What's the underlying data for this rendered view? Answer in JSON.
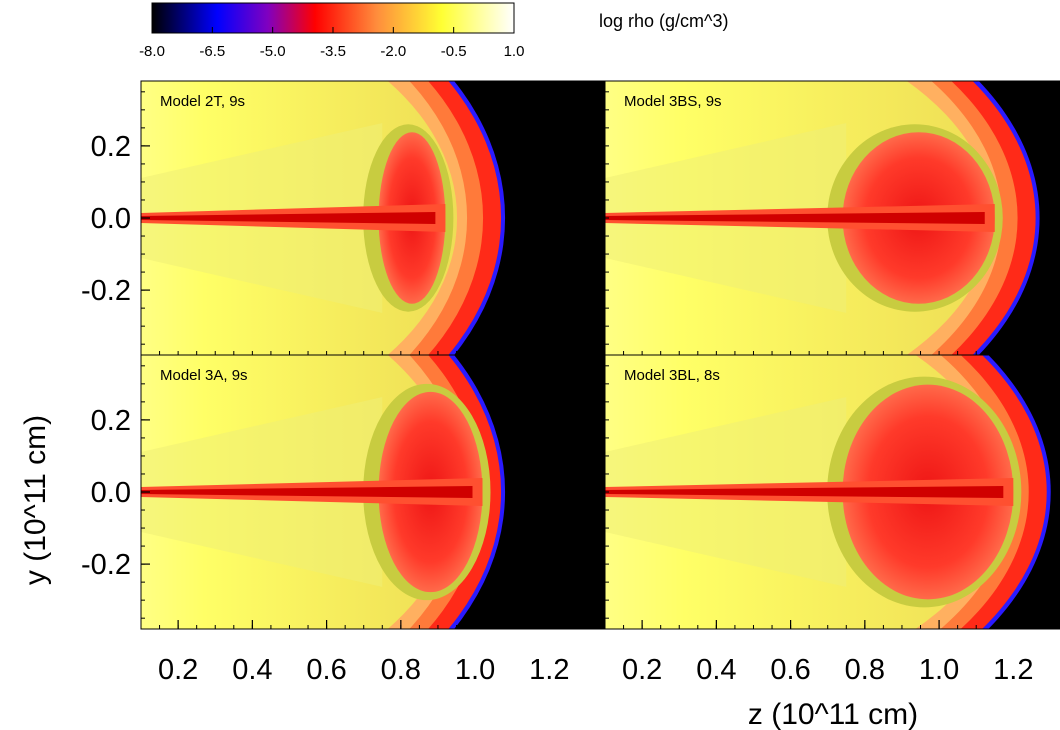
{
  "chart_data": {
    "type": "heatmap",
    "colorbar": {
      "title": "log rho (g/cm^3)",
      "range": [
        -8.0,
        1.0
      ],
      "tick_labels": [
        "-8.0",
        "-6.5",
        "-5.0",
        "-3.5",
        "-2.0",
        "-0.5",
        "1.0"
      ],
      "tick_values": [
        -8.0,
        -6.5,
        -5.0,
        -3.5,
        -2.0,
        -0.5,
        1.0
      ],
      "colormap": [
        "#000000",
        "#0000ff",
        "#8000c0",
        "#ff0000",
        "#ff8c3c",
        "#ffff33",
        "#ffffff"
      ]
    },
    "xlabel": "z (10^11 cm)",
    "ylabel": "y (10^11 cm)",
    "xlim": [
      0.1,
      1.35
    ],
    "ylim": [
      -0.38,
      0.38
    ],
    "x_tick_labels": [
      "0.2",
      "0.4",
      "0.6",
      "0.8",
      "1.0",
      "1.2"
    ],
    "x_ticks": [
      0.2,
      0.4,
      0.6,
      0.8,
      1.0,
      1.2
    ],
    "y_tick_labels": [
      "0.2",
      "0.0",
      "-0.2"
    ],
    "y_ticks": [
      0.2,
      0.0,
      -0.2
    ],
    "panels": [
      {
        "label": "Model 2T, 9s",
        "front_z": 1.07,
        "cocoon_z": 0.92,
        "cocoon_y": 0.26,
        "bg_z": 1.15
      },
      {
        "label": "Model 3BS, 9s",
        "front_z": 1.26,
        "cocoon_z": 1.15,
        "cocoon_y": 0.26,
        "bg_z": 1.32
      },
      {
        "label": "Model 3A, 9s",
        "front_z": 1.07,
        "cocoon_z": 1.02,
        "cocoon_y": 0.3,
        "bg_z": 1.15
      },
      {
        "label": "Model 3BL, 8s",
        "front_z": 1.29,
        "cocoon_z": 1.2,
        "cocoon_y": 0.32,
        "bg_z": 1.35
      }
    ]
  }
}
